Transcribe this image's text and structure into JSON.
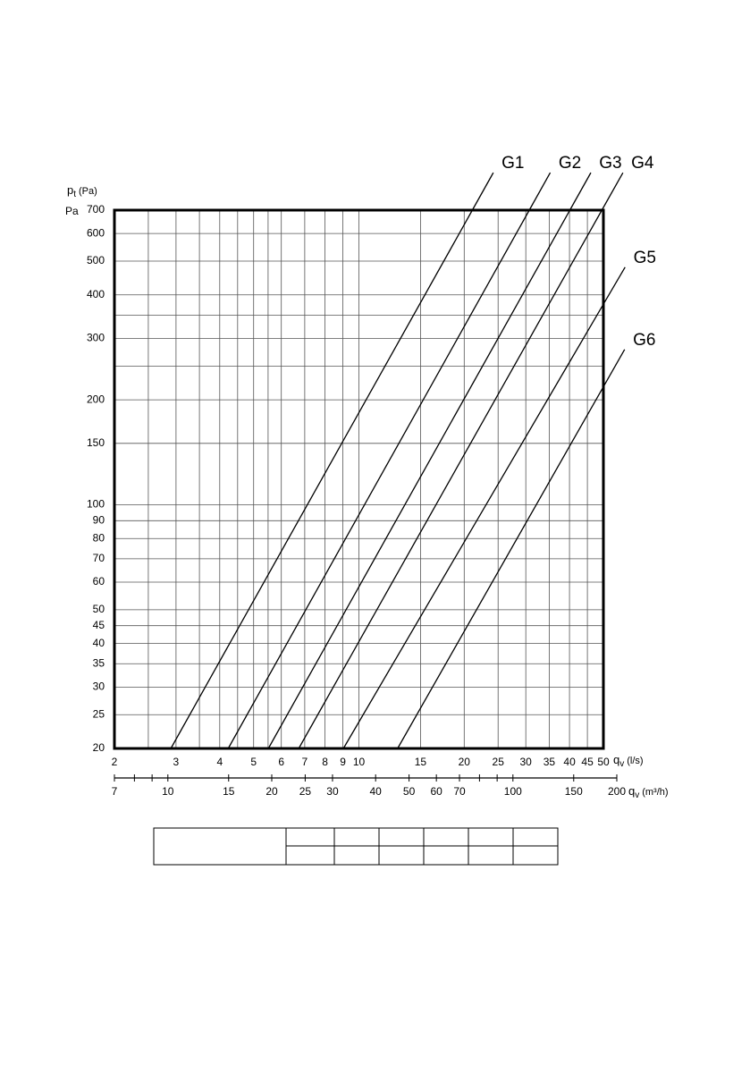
{
  "chart_data": {
    "type": "line",
    "y_label": {
      "symbol": "p",
      "subscript": "t",
      "unit": "(Pa)"
    },
    "y_unit": "Pa",
    "x_label": {
      "symbol": "q",
      "subscript": "v",
      "unit": "(l/s)"
    },
    "x2_label": {
      "symbol": "q",
      "subscript": "v",
      "unit": "(m³/h)"
    },
    "log_x": true,
    "log_y": true,
    "grid": true,
    "xlim": [
      2,
      50
    ],
    "xticks": [
      2,
      3,
      4,
      5,
      6,
      7,
      8,
      9,
      10,
      15,
      20,
      25,
      30,
      35,
      40,
      45,
      50
    ],
    "xgrid": [
      2.5,
      3,
      3.5,
      4,
      4.5,
      5,
      5.5,
      6,
      7,
      8,
      9,
      10,
      15,
      20,
      25,
      30,
      35,
      40,
      45
    ],
    "x2lim": [
      7,
      200
    ],
    "x2ticks": [
      7,
      {
        "value": 8,
        "label": null
      },
      {
        "value": 9,
        "label": null
      },
      10,
      15,
      20,
      25,
      30,
      40,
      50,
      60,
      70,
      {
        "value": 80,
        "label": null
      },
      {
        "value": 90,
        "label": null
      },
      100,
      150,
      200
    ],
    "ylim": [
      20,
      700
    ],
    "yticks": [
      20,
      25,
      30,
      35,
      40,
      45,
      50,
      60,
      70,
      80,
      90,
      100,
      150,
      200,
      300,
      400,
      500,
      600,
      700
    ],
    "ygrid": [
      25,
      30,
      35,
      40,
      45,
      50,
      60,
      70,
      80,
      90,
      100,
      150,
      200,
      250,
      300,
      350,
      400,
      500,
      600
    ],
    "series": [
      {
        "name": "G1",
        "color": "#000000",
        "x": [
          2.9,
          21.1
        ],
        "values": [
          20,
          700
        ]
      },
      {
        "name": "G2",
        "color": "#000000",
        "x": [
          4.23,
          30.7
        ],
        "values": [
          20,
          700
        ]
      },
      {
        "name": "G3",
        "color": "#000000",
        "x": [
          5.51,
          40.1
        ],
        "values": [
          20,
          700
        ]
      },
      {
        "name": "G4",
        "color": "#000000",
        "x": [
          6.73,
          49.5
        ],
        "values": [
          20,
          700
        ]
      },
      {
        "name": "G5",
        "color": "#000000",
        "x": [
          9.03,
          50
        ],
        "values": [
          20,
          376
        ]
      },
      {
        "name": "G6",
        "color": "#000000",
        "x": [
          12.9,
          50
        ],
        "values": [
          20,
          218
        ]
      }
    ]
  }
}
